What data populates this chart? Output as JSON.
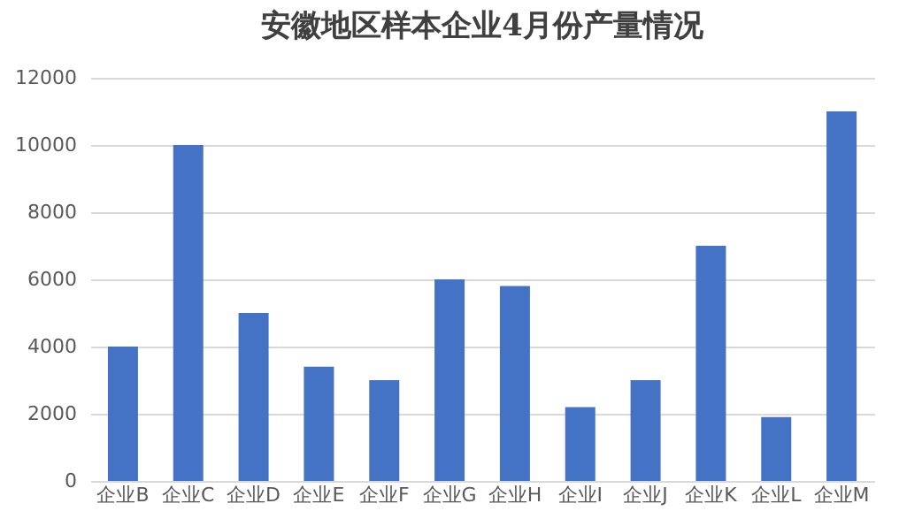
{
  "chart_data": {
    "type": "bar",
    "title": "安徽地区样本企业4月份产量情况",
    "categories": [
      "企业B",
      "企业C",
      "企业D",
      "企业E",
      "企业F",
      "企业G",
      "企业H",
      "企业I",
      "企业J",
      "企业K",
      "企业L",
      "企业M"
    ],
    "values": [
      4000,
      10000,
      5000,
      3400,
      3000,
      6000,
      5800,
      2200,
      3000,
      7000,
      1900,
      11000
    ],
    "color": "#4472c4",
    "ylim": [
      0,
      12000
    ],
    "yticks": [
      0,
      2000,
      4000,
      6000,
      8000,
      10000,
      12000
    ],
    "grid": "y"
  }
}
